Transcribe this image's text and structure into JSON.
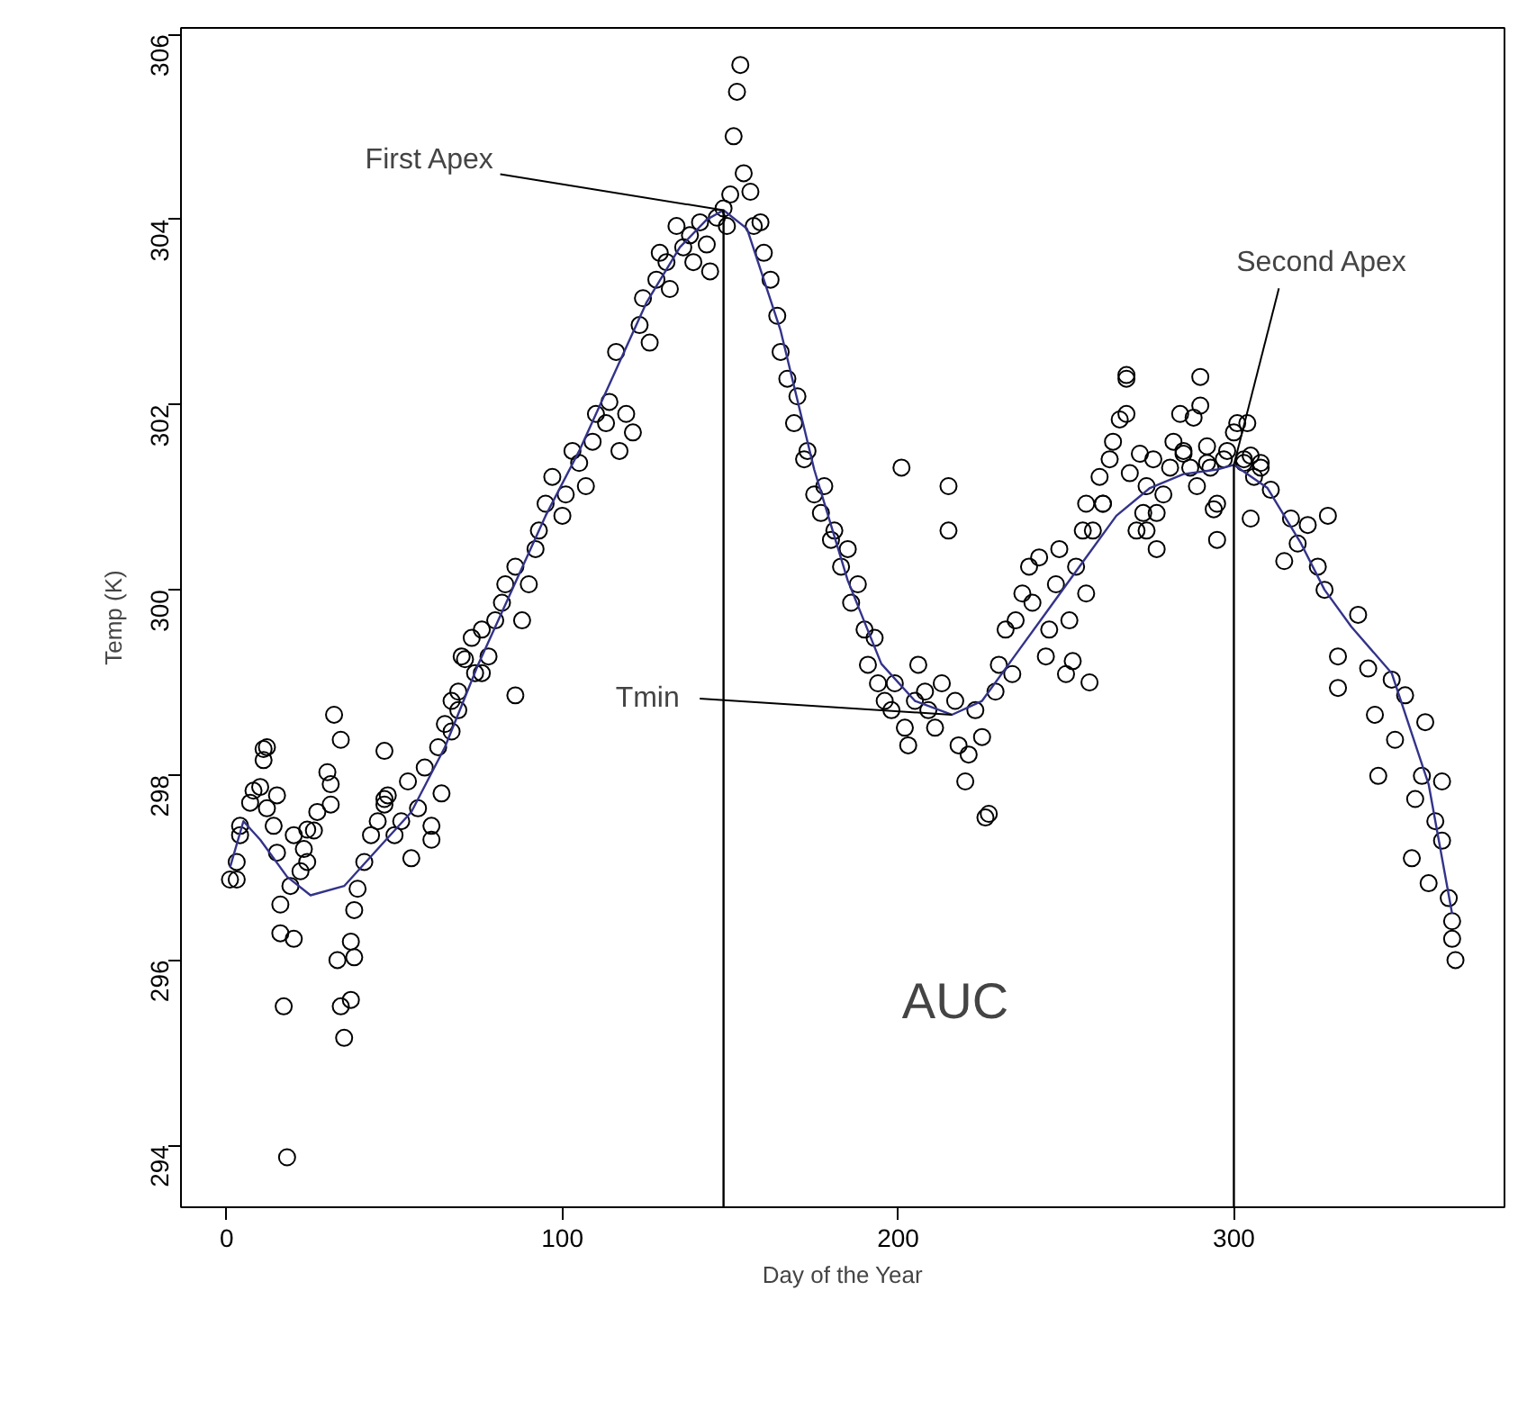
{
  "chart_data": {
    "type": "scatter",
    "xlabel": "Day of the Year",
    "ylabel": "Temp (K)",
    "xlim": [
      -13.6,
      380.6
    ],
    "ylim": [
      293.33,
      306.07
    ],
    "xticks": [
      0,
      100,
      200,
      300
    ],
    "yticks": [
      294,
      296,
      298,
      300,
      302,
      304,
      306
    ],
    "grid": false,
    "series": [
      {
        "marker": "circle",
        "color": "#000000",
        "x": [
          1,
          3,
          4,
          7,
          8,
          11,
          12,
          12,
          14,
          15,
          16,
          17,
          18,
          19,
          20,
          22,
          23,
          24,
          26,
          27,
          30,
          31,
          33,
          34,
          35,
          37,
          38,
          39,
          41,
          43,
          45,
          47,
          48,
          50,
          52,
          54,
          57,
          59,
          61,
          63,
          65,
          67,
          69,
          71,
          73,
          74,
          76,
          78,
          80,
          82,
          83,
          86,
          86,
          88,
          90,
          92,
          93,
          95,
          97,
          100,
          101,
          103,
          105,
          107,
          109,
          110,
          113,
          114,
          116,
          117,
          119,
          121,
          123,
          124,
          126,
          128,
          129,
          131,
          132,
          134,
          136,
          138,
          139,
          141,
          143,
          144,
          146,
          148,
          149,
          150,
          151,
          152,
          153,
          154,
          156,
          157,
          159,
          160,
          162,
          164,
          165,
          167,
          169,
          170,
          172,
          173,
          175,
          177,
          178,
          180,
          181,
          183,
          185,
          186,
          188,
          190,
          191,
          193,
          194,
          196,
          198,
          199,
          201,
          202,
          203,
          205,
          206,
          208,
          209,
          211,
          213,
          215,
          215,
          217,
          218,
          220,
          221,
          223,
          225,
          226,
          227,
          229,
          230,
          232,
          234,
          235,
          237,
          239,
          240,
          242,
          244,
          245,
          247,
          248,
          250,
          251,
          253,
          255,
          256,
          258,
          260,
          261,
          263,
          264,
          266,
          268,
          269,
          271,
          273,
          274,
          276,
          277,
          279,
          281,
          282,
          284,
          285,
          287,
          289,
          290,
          292,
          293,
          295,
          297,
          298,
          300,
          301,
          303,
          305,
          306,
          308,
          268,
          290,
          268,
          288,
          272,
          285,
          304,
          292,
          303,
          308,
          294,
          305,
          295,
          274,
          277,
          261,
          256,
          252,
          257,
          311,
          317,
          322,
          328,
          319,
          315,
          325,
          327,
          337,
          331,
          340,
          331,
          347,
          351,
          357,
          342,
          348,
          343,
          356,
          362,
          354,
          360,
          362,
          353,
          358,
          364,
          365,
          365,
          366,
          3,
          4,
          11,
          10,
          15,
          32,
          34,
          16,
          20,
          37,
          38,
          24,
          31,
          47,
          47,
          55,
          61,
          64,
          67,
          69,
          70,
          76
        ],
        "values": [
          296.87,
          297.06,
          297.35,
          297.7,
          297.83,
          298.16,
          298.3,
          297.64,
          297.45,
          297.16,
          296.29,
          295.5,
          293.87,
          296.8,
          297.35,
          296.96,
          297.2,
          297.06,
          297.4,
          297.6,
          298.03,
          297.9,
          296.0,
          295.5,
          295.16,
          296.2,
          296.54,
          296.77,
          297.06,
          297.35,
          297.5,
          297.74,
          297.78,
          297.35,
          297.5,
          297.93,
          297.64,
          298.08,
          297.45,
          298.3,
          298.55,
          298.8,
          298.7,
          299.25,
          299.48,
          299.1,
          299.57,
          299.28,
          299.67,
          299.86,
          300.06,
          300.25,
          298.86,
          299.67,
          300.06,
          300.44,
          300.64,
          300.93,
          301.22,
          300.8,
          301.03,
          301.5,
          301.37,
          301.12,
          301.6,
          301.9,
          301.8,
          302.03,
          302.57,
          301.5,
          301.9,
          301.7,
          302.86,
          303.15,
          302.67,
          303.35,
          303.64,
          303.54,
          303.25,
          303.93,
          303.7,
          303.83,
          303.54,
          303.97,
          303.73,
          303.44,
          304.02,
          304.12,
          303.93,
          304.27,
          304.9,
          305.38,
          305.67,
          304.5,
          304.3,
          303.93,
          303.97,
          303.64,
          303.35,
          302.96,
          302.57,
          302.28,
          301.8,
          302.09,
          301.41,
          301.5,
          301.03,
          300.83,
          301.12,
          300.54,
          300.64,
          300.25,
          300.44,
          299.86,
          300.06,
          299.57,
          299.19,
          299.48,
          298.99,
          298.8,
          298.7,
          298.99,
          301.32,
          298.51,
          298.32,
          298.8,
          299.19,
          298.9,
          298.7,
          298.51,
          298.99,
          300.64,
          301.12,
          298.8,
          298.32,
          297.93,
          298.22,
          298.7,
          298.41,
          297.54,
          297.58,
          298.9,
          299.19,
          299.57,
          299.09,
          299.67,
          299.96,
          300.25,
          299.86,
          300.35,
          299.28,
          299.57,
          300.06,
          300.44,
          299.09,
          299.67,
          300.25,
          300.64,
          300.93,
          300.64,
          301.22,
          300.93,
          301.41,
          301.6,
          301.84,
          302.28,
          301.26,
          300.64,
          300.83,
          301.12,
          301.41,
          300.83,
          301.03,
          301.32,
          301.6,
          301.9,
          301.5,
          301.32,
          301.12,
          301.99,
          301.55,
          301.32,
          300.93,
          301.41,
          301.5,
          301.7,
          301.8,
          301.37,
          301.45,
          301.22,
          301.32,
          302.32,
          302.3,
          301.9,
          301.86,
          301.47,
          301.47,
          301.8,
          301.37,
          301.41,
          301.37,
          300.87,
          300.77,
          300.54,
          300.64,
          300.44,
          300.93,
          299.96,
          299.23,
          299.0,
          301.08,
          300.77,
          300.7,
          300.8,
          300.5,
          300.31,
          300.25,
          300.0,
          299.73,
          299.28,
          299.15,
          298.94,
          299.03,
          298.86,
          298.57,
          298.65,
          298.38,
          297.99,
          297.99,
          297.93,
          297.74,
          297.5,
          297.29,
          297.1,
          296.83,
          296.67,
          296.42,
          296.23,
          296.0,
          296.87,
          297.45,
          298.28,
          297.87,
          297.78,
          298.65,
          298.38,
          296.6,
          296.23,
          295.57,
          296.03,
          297.41,
          297.68,
          298.26,
          297.68,
          297.1,
          297.3,
          297.8,
          298.47,
          298.9,
          299.28,
          299.1
        ]
      },
      {
        "type": "line",
        "color": "#33338a",
        "x": [
          1,
          5,
          10,
          18,
          25,
          35,
          45,
          55,
          65,
          75,
          85,
          95,
          105,
          115,
          125,
          135,
          143,
          148,
          155,
          165,
          175,
          185,
          195,
          205,
          216,
          225,
          235,
          245,
          255,
          265,
          275,
          285,
          295,
          300,
          310,
          320,
          327,
          335,
          347,
          358,
          365
        ],
        "values": [
          297.0,
          297.5,
          297.3,
          296.9,
          296.7,
          296.8,
          297.2,
          297.6,
          298.3,
          299.2,
          300.0,
          300.8,
          301.5,
          302.3,
          303.1,
          303.7,
          304.0,
          304.1,
          303.9,
          302.8,
          301.3,
          300.1,
          299.2,
          298.8,
          298.65,
          298.8,
          299.3,
          299.8,
          300.3,
          300.8,
          301.1,
          301.25,
          301.3,
          301.35,
          301.1,
          300.5,
          300.0,
          299.6,
          299.1,
          297.9,
          296.5
        ]
      }
    ],
    "ref_lines": [
      {
        "axis": "x",
        "value": 148
      },
      {
        "axis": "x",
        "value": 300
      }
    ],
    "annotations": [
      {
        "text": "First Apex",
        "x": 148,
        "y": 304.1
      },
      {
        "text": "Second Apex",
        "x": 300,
        "y": 301.35
      },
      {
        "text": "Tmin",
        "x": 216,
        "y": 298.65
      },
      "AUC"
    ]
  }
}
